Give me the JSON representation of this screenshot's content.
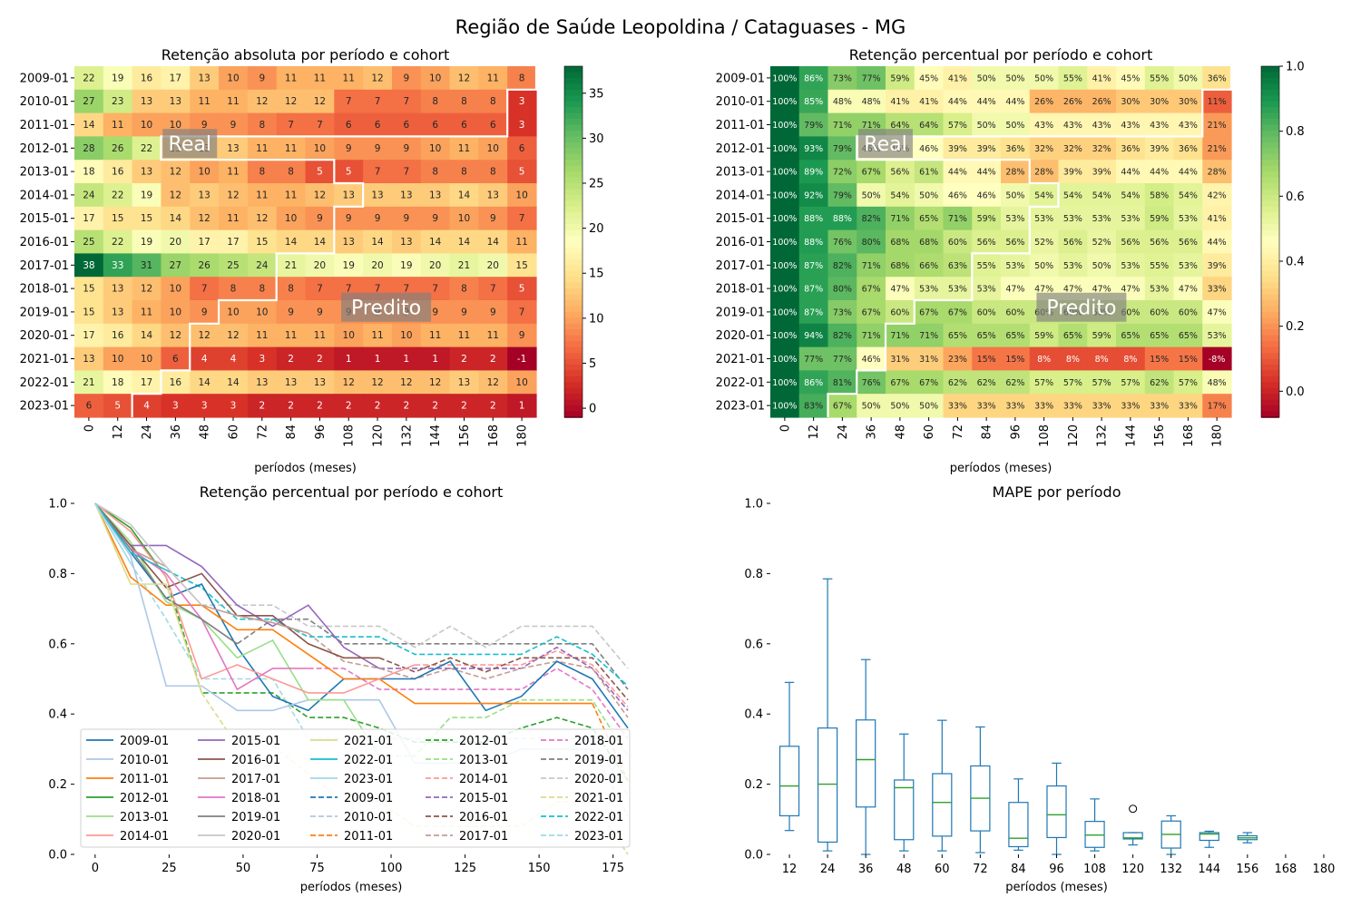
{
  "figure": {
    "suptitle": "Região de Saúde Leopoldina / Cataguases - MG"
  },
  "colors": {
    "colormap": "RdYlGn",
    "cmap_stops": [
      "#a50026",
      "#d73027",
      "#f46d43",
      "#fdae61",
      "#fee08b",
      "#ffffbf",
      "#d9ef8b",
      "#a6d96a",
      "#66bd63",
      "#1a9850",
      "#006837"
    ],
    "tab10": [
      "#1f77b4",
      "#aec7e8",
      "#ff7f0e",
      "#2ca02c",
      "#98df8a",
      "#ff9896",
      "#9467bd",
      "#8c564b",
      "#c49c94",
      "#e377c2",
      "#7f7f7f",
      "#c7c7c7",
      "#dbdb8d",
      "#17becf",
      "#9edae5"
    ],
    "box_color": "#1f77b4",
    "median_color": "#2ca02c"
  },
  "chart_data": [
    {
      "type": "heatmap",
      "title": "Retenção absoluta por período e cohort",
      "xlabel": "períodos (meses)",
      "x": [
        "0",
        "12",
        "24",
        "36",
        "48",
        "60",
        "72",
        "84",
        "96",
        "108",
        "120",
        "132",
        "144",
        "156",
        "168",
        "180"
      ],
      "y": [
        "2009-01",
        "2010-01",
        "2011-01",
        "2012-01",
        "2013-01",
        "2014-01",
        "2015-01",
        "2016-01",
        "2017-01",
        "2018-01",
        "2019-01",
        "2020-01",
        "2021-01",
        "2022-01",
        "2023-01"
      ],
      "values": [
        [
          22,
          19,
          16,
          17,
          13,
          10,
          9,
          11,
          11,
          11,
          12,
          9,
          10,
          12,
          11,
          8
        ],
        [
          27,
          23,
          13,
          13,
          11,
          11,
          12,
          12,
          12,
          7,
          7,
          7,
          8,
          8,
          8,
          3
        ],
        [
          14,
          11,
          10,
          10,
          9,
          9,
          8,
          7,
          7,
          6,
          6,
          6,
          6,
          6,
          6,
          3
        ],
        [
          28,
          26,
          22,
          13,
          13,
          13,
          11,
          11,
          10,
          9,
          9,
          9,
          10,
          11,
          10,
          6
        ],
        [
          18,
          16,
          13,
          12,
          10,
          11,
          8,
          8,
          5,
          5,
          7,
          7,
          8,
          8,
          8,
          5
        ],
        [
          24,
          22,
          19,
          12,
          13,
          12,
          11,
          11,
          12,
          13,
          13,
          13,
          13,
          14,
          13,
          10
        ],
        [
          17,
          15,
          15,
          14,
          12,
          11,
          12,
          10,
          9,
          9,
          9,
          9,
          9,
          10,
          9,
          7
        ],
        [
          25,
          22,
          19,
          20,
          17,
          17,
          15,
          14,
          14,
          13,
          14,
          13,
          14,
          14,
          14,
          11
        ],
        [
          38,
          33,
          31,
          27,
          26,
          25,
          24,
          21,
          20,
          19,
          20,
          19,
          20,
          21,
          20,
          15
        ],
        [
          15,
          13,
          12,
          10,
          7,
          8,
          8,
          8,
          7,
          7,
          7,
          7,
          7,
          8,
          7,
          5
        ],
        [
          15,
          13,
          11,
          10,
          9,
          10,
          10,
          9,
          9,
          9,
          9,
          9,
          9,
          9,
          9,
          7
        ],
        [
          17,
          16,
          14,
          12,
          12,
          12,
          11,
          11,
          11,
          10,
          11,
          10,
          11,
          11,
          11,
          9
        ],
        [
          13,
          10,
          10,
          6,
          4,
          4,
          3,
          2,
          2,
          1,
          1,
          1,
          1,
          2,
          2,
          -1
        ],
        [
          21,
          18,
          17,
          16,
          14,
          14,
          13,
          13,
          13,
          12,
          12,
          12,
          12,
          13,
          12,
          10
        ],
        [
          6,
          5,
          4,
          3,
          3,
          3,
          2,
          2,
          2,
          2,
          2,
          2,
          2,
          2,
          2,
          1
        ]
      ],
      "colorbar": {
        "min": -1,
        "max": 38,
        "ticks": [
          0,
          5,
          10,
          15,
          20,
          25,
          30,
          35
        ]
      },
      "boundary_real_cols": [
        16,
        15,
        15,
        3,
        9,
        10,
        9,
        9,
        7,
        7,
        5,
        4,
        4,
        3,
        2
      ],
      "annotations": [
        "Real",
        "Predito"
      ]
    },
    {
      "type": "heatmap",
      "title": "Retenção percentual por período e cohort",
      "xlabel": "períodos (meses)",
      "x": [
        "0",
        "12",
        "24",
        "36",
        "48",
        "60",
        "72",
        "84",
        "96",
        "108",
        "120",
        "132",
        "144",
        "156",
        "168",
        "180"
      ],
      "y": [
        "2009-01",
        "2010-01",
        "2011-01",
        "2012-01",
        "2013-01",
        "2014-01",
        "2015-01",
        "2016-01",
        "2017-01",
        "2018-01",
        "2019-01",
        "2020-01",
        "2021-01",
        "2022-01",
        "2023-01"
      ],
      "values": [
        [
          100,
          86,
          73,
          77,
          59,
          45,
          41,
          50,
          50,
          50,
          55,
          41,
          45,
          55,
          50,
          36
        ],
        [
          100,
          85,
          48,
          48,
          41,
          41,
          44,
          44,
          44,
          26,
          26,
          26,
          30,
          30,
          30,
          11
        ],
        [
          100,
          79,
          71,
          71,
          64,
          64,
          57,
          50,
          50,
          43,
          43,
          43,
          43,
          43,
          43,
          21
        ],
        [
          100,
          93,
          79,
          46,
          46,
          46,
          39,
          39,
          36,
          32,
          32,
          32,
          36,
          39,
          36,
          21
        ],
        [
          100,
          89,
          72,
          67,
          56,
          61,
          44,
          44,
          28,
          28,
          39,
          39,
          44,
          44,
          44,
          28
        ],
        [
          100,
          92,
          79,
          50,
          54,
          50,
          46,
          46,
          50,
          54,
          54,
          54,
          54,
          58,
          54,
          42
        ],
        [
          100,
          88,
          88,
          82,
          71,
          65,
          71,
          59,
          53,
          53,
          53,
          53,
          53,
          59,
          53,
          41
        ],
        [
          100,
          88,
          76,
          80,
          68,
          68,
          60,
          56,
          56,
          52,
          56,
          52,
          56,
          56,
          56,
          44
        ],
        [
          100,
          87,
          82,
          71,
          68,
          66,
          63,
          55,
          53,
          50,
          53,
          50,
          53,
          55,
          53,
          39
        ],
        [
          100,
          87,
          80,
          67,
          47,
          53,
          53,
          53,
          47,
          47,
          47,
          47,
          47,
          53,
          47,
          33
        ],
        [
          100,
          87,
          73,
          67,
          60,
          67,
          67,
          60,
          60,
          60,
          60,
          60,
          60,
          60,
          60,
          47
        ],
        [
          100,
          94,
          82,
          71,
          71,
          71,
          65,
          65,
          65,
          59,
          65,
          59,
          65,
          65,
          65,
          53
        ],
        [
          100,
          77,
          77,
          46,
          31,
          31,
          23,
          15,
          15,
          8,
          8,
          8,
          8,
          15,
          15,
          -8
        ],
        [
          100,
          86,
          81,
          76,
          67,
          67,
          62,
          62,
          62,
          57,
          57,
          57,
          57,
          62,
          57,
          48
        ],
        [
          100,
          83,
          67,
          50,
          50,
          50,
          33,
          33,
          33,
          33,
          33,
          33,
          33,
          33,
          33,
          17
        ]
      ],
      "value_suffix": "%",
      "colorbar": {
        "min": -0.08,
        "max": 1.0,
        "ticks": [
          0.0,
          0.2,
          0.4,
          0.6,
          0.8,
          1.0
        ],
        "tick_labels": [
          "0.0",
          "0.2",
          "0.4",
          "0.6",
          "0.8",
          "1.0"
        ]
      },
      "annotations": [
        "Real",
        "Predito"
      ]
    },
    {
      "type": "line",
      "title": "Retenção percentual por período e cohort",
      "xlabel": "períodos (meses)",
      "xlim": [
        -7,
        180
      ],
      "ylim": [
        0,
        1.0
      ],
      "xticks": [
        0,
        25,
        50,
        75,
        100,
        125,
        150,
        175
      ],
      "yticks": [
        "0.0",
        "0.2",
        "0.4",
        "0.6",
        "0.8",
        "1.0"
      ],
      "legend": {
        "placement": "lower-center",
        "columns": 5,
        "labels": [
          "2009-01",
          "2010-01",
          "2011-01",
          "2012-01",
          "2013-01",
          "2014-01",
          "2015-01",
          "2016-01",
          "2017-01",
          "2018-01",
          "2019-01",
          "2020-01",
          "2021-01",
          "2022-01",
          "2023-01",
          "2009-01",
          "2010-01",
          "2011-01",
          "2012-01",
          "2013-01",
          "2014-01",
          "2015-01",
          "2016-01",
          "2017-01",
          "2018-01",
          "2019-01",
          "2020-01",
          "2021-01",
          "2022-01",
          "2023-01"
        ]
      },
      "note": "solid lines = real retention, dashed lines = predicted retention (same color per cohort)"
    },
    {
      "type": "box",
      "title": "MAPE por período",
      "xlabel": "períodos (meses)",
      "ylim": [
        0,
        1.0
      ],
      "yticks": [
        "0.0",
        "0.2",
        "0.4",
        "0.6",
        "0.8",
        "1.0"
      ],
      "categories": [
        "12",
        "24",
        "36",
        "48",
        "60",
        "72",
        "84",
        "96",
        "108",
        "120",
        "132",
        "144",
        "156",
        "168",
        "180"
      ],
      "boxes": [
        {
          "lo": 0.068,
          "q1": 0.11,
          "med": 0.195,
          "q3": 0.308,
          "hi": 0.49
        },
        {
          "lo": 0.01,
          "q1": 0.035,
          "med": 0.2,
          "q3": 0.36,
          "hi": 0.785
        },
        {
          "lo": 0.0,
          "q1": 0.135,
          "med": 0.27,
          "q3": 0.383,
          "hi": 0.555
        },
        {
          "lo": 0.01,
          "q1": 0.042,
          "med": 0.19,
          "q3": 0.212,
          "hi": 0.343
        },
        {
          "lo": 0.01,
          "q1": 0.052,
          "med": 0.148,
          "q3": 0.23,
          "hi": 0.382
        },
        {
          "lo": 0.005,
          "q1": 0.067,
          "med": 0.16,
          "q3": 0.252,
          "hi": 0.363
        },
        {
          "lo": 0.012,
          "q1": 0.022,
          "med": 0.046,
          "q3": 0.148,
          "hi": 0.215
        },
        {
          "lo": 0.0,
          "q1": 0.048,
          "med": 0.113,
          "q3": 0.195,
          "hi": 0.26
        },
        {
          "lo": 0.01,
          "q1": 0.02,
          "med": 0.055,
          "q3": 0.094,
          "hi": 0.158
        },
        {
          "lo": 0.027,
          "q1": 0.044,
          "med": 0.047,
          "q3": 0.062,
          "hi": 0.062,
          "outliers": [
            0.13
          ]
        },
        {
          "lo": 0.0,
          "q1": 0.018,
          "med": 0.057,
          "q3": 0.095,
          "hi": 0.11
        },
        {
          "lo": 0.02,
          "q1": 0.04,
          "med": 0.058,
          "q3": 0.062,
          "hi": 0.066
        },
        {
          "lo": 0.033,
          "q1": 0.042,
          "med": 0.047,
          "q3": 0.053,
          "hi": 0.062
        },
        null,
        null
      ]
    }
  ]
}
